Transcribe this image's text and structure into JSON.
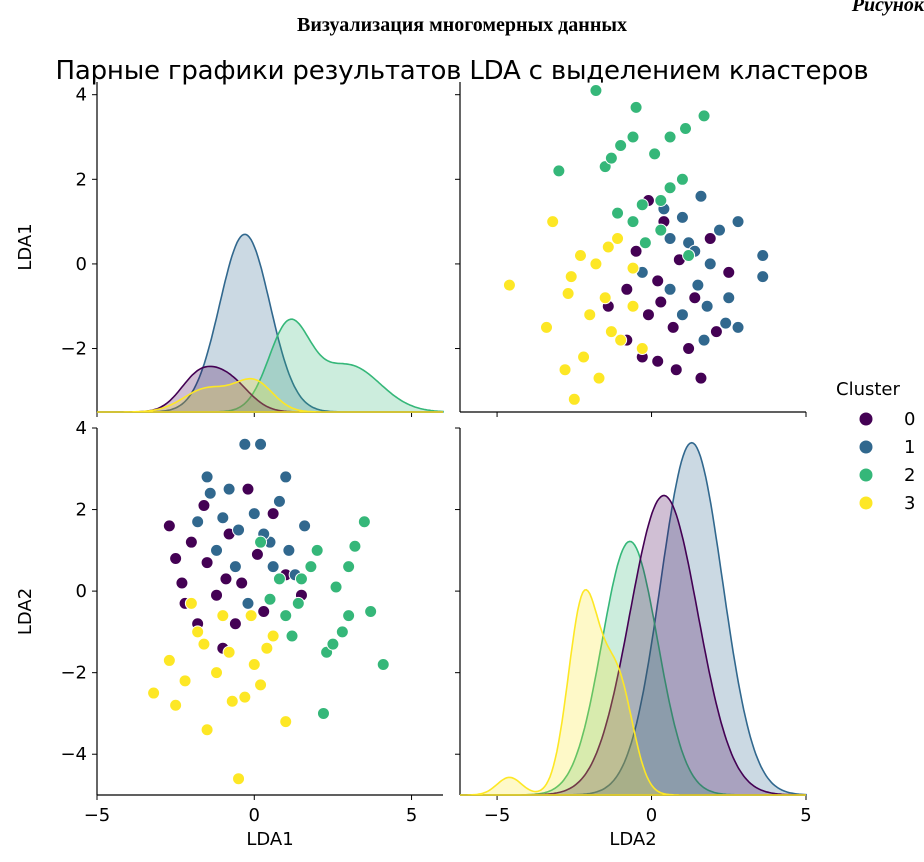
{
  "document": {
    "caption_fragment": "Рисунок",
    "heading": "Визуализация многомерных данных"
  },
  "chart_data": {
    "type": "scatter",
    "title": "Парные графики результатов LDA с выделением кластеров",
    "variables": [
      "LDA1",
      "LDA2"
    ],
    "legend": {
      "title": "Cluster",
      "placement": "right",
      "labels": [
        "0",
        "1",
        "2",
        "3"
      ]
    },
    "colors": {
      "0": "#440154",
      "1": "#31688e",
      "2": "#35b779",
      "3": "#fde725"
    },
    "axes": {
      "LDA1": {
        "range": [
          -5,
          6
        ],
        "ticks": [
          -5,
          0,
          5
        ],
        "diag_range": [
          -3.5,
          4.3
        ],
        "diag_ticks": [
          -2,
          0,
          2,
          4
        ]
      },
      "LDA2": {
        "range": [
          -6.2,
          5.0
        ],
        "ticks": [
          -5,
          0,
          5
        ],
        "offdiag_range": [
          -5,
          4
        ],
        "offdiag_ticks": [
          -4,
          -2,
          0,
          2,
          4
        ]
      }
    },
    "grid": false,
    "points": [
      {
        "c": 0,
        "x": -2.7,
        "y": 1.6
      },
      {
        "c": 0,
        "x": -2.3,
        "y": 0.2
      },
      {
        "c": 0,
        "x": -2.0,
        "y": 1.2
      },
      {
        "c": 0,
        "x": -1.8,
        "y": -0.8
      },
      {
        "c": 0,
        "x": -1.5,
        "y": 0.7
      },
      {
        "c": 0,
        "x": -1.2,
        "y": -0.1
      },
      {
        "c": 0,
        "x": -0.8,
        "y": 1.4
      },
      {
        "c": 0,
        "x": -0.4,
        "y": 0.2
      },
      {
        "c": 0,
        "x": -0.2,
        "y": 2.5
      },
      {
        "c": 0,
        "x": 0.3,
        "y": -0.5
      },
      {
        "c": 0,
        "x": 0.6,
        "y": 1.9
      },
      {
        "c": 0,
        "x": 1.0,
        "y": 0.4
      },
      {
        "c": 0,
        "x": 1.5,
        "y": -0.1
      },
      {
        "c": 0,
        "x": -1.0,
        "y": -1.4
      },
      {
        "c": 0,
        "x": -2.5,
        "y": 0.8
      },
      {
        "c": 0,
        "x": -1.6,
        "y": 2.1
      },
      {
        "c": 0,
        "x": -0.6,
        "y": -0.8
      },
      {
        "c": 0,
        "x": 0.1,
        "y": 0.9
      },
      {
        "c": 0,
        "x": -2.2,
        "y": -0.3
      },
      {
        "c": 0,
        "x": -0.9,
        "y": 0.3
      },
      {
        "c": 1,
        "x": -1.5,
        "y": 2.8
      },
      {
        "c": 1,
        "x": -1.0,
        "y": 1.8
      },
      {
        "c": 1,
        "x": -0.3,
        "y": 3.6
      },
      {
        "c": 1,
        "x": 0.2,
        "y": 3.6
      },
      {
        "c": 1,
        "x": 0.5,
        "y": 1.2
      },
      {
        "c": 1,
        "x": 1.0,
        "y": 2.8
      },
      {
        "c": 1,
        "x": 1.3,
        "y": 0.4
      },
      {
        "c": 1,
        "x": -0.6,
        "y": 0.6
      },
      {
        "c": 1,
        "x": 0.0,
        "y": 1.9
      },
      {
        "c": 1,
        "x": -1.8,
        "y": 1.7
      },
      {
        "c": 1,
        "x": -0.8,
        "y": 2.5
      },
      {
        "c": 1,
        "x": 0.8,
        "y": 2.2
      },
      {
        "c": 1,
        "x": 1.6,
        "y": 1.6
      },
      {
        "c": 1,
        "x": -0.2,
        "y": -0.3
      },
      {
        "c": 1,
        "x": -1.2,
        "y": 1.0
      },
      {
        "c": 1,
        "x": 0.3,
        "y": 1.4
      },
      {
        "c": 1,
        "x": -1.4,
        "y": 2.4
      },
      {
        "c": 1,
        "x": 1.1,
        "y": 1.0
      },
      {
        "c": 1,
        "x": -0.5,
        "y": 1.5
      },
      {
        "c": 1,
        "x": 0.6,
        "y": 0.6
      },
      {
        "c": 2,
        "x": 0.5,
        "y": -0.2
      },
      {
        "c": 2,
        "x": 1.0,
        "y": -0.6
      },
      {
        "c": 2,
        "x": 1.5,
        "y": 0.3
      },
      {
        "c": 2,
        "x": 2.0,
        "y": 1.0
      },
      {
        "c": 2,
        "x": 2.3,
        "y": -1.5
      },
      {
        "c": 2,
        "x": 2.6,
        "y": 0.1
      },
      {
        "c": 2,
        "x": 3.0,
        "y": -0.6
      },
      {
        "c": 2,
        "x": 3.2,
        "y": 1.1
      },
      {
        "c": 2,
        "x": 3.7,
        "y": -0.5
      },
      {
        "c": 2,
        "x": 4.1,
        "y": -1.8
      },
      {
        "c": 2,
        "x": 1.2,
        "y": -1.1
      },
      {
        "c": 2,
        "x": 2.2,
        "y": -3.0
      },
      {
        "c": 2,
        "x": 0.2,
        "y": 1.2
      },
      {
        "c": 2,
        "x": 1.8,
        "y": 0.6
      },
      {
        "c": 2,
        "x": 3.5,
        "y": 1.7
      },
      {
        "c": 2,
        "x": 2.8,
        "y": -1.0
      },
      {
        "c": 2,
        "x": 1.4,
        "y": -0.3
      },
      {
        "c": 2,
        "x": 2.5,
        "y": -1.3
      },
      {
        "c": 2,
        "x": 3.0,
        "y": 0.6
      },
      {
        "c": 2,
        "x": 0.8,
        "y": 0.3
      },
      {
        "c": 3,
        "x": -3.2,
        "y": -2.5
      },
      {
        "c": 3,
        "x": -2.7,
        "y": -1.7
      },
      {
        "c": 3,
        "x": -2.2,
        "y": -2.2
      },
      {
        "c": 3,
        "x": -1.8,
        "y": -1.0
      },
      {
        "c": 3,
        "x": -1.5,
        "y": -3.4
      },
      {
        "c": 3,
        "x": -1.2,
        "y": -2.0
      },
      {
        "c": 3,
        "x": -0.8,
        "y": -1.5
      },
      {
        "c": 3,
        "x": -0.5,
        "y": -4.6
      },
      {
        "c": 3,
        "x": -0.1,
        "y": -0.6
      },
      {
        "c": 3,
        "x": 0.2,
        "y": -2.3
      },
      {
        "c": 3,
        "x": 0.6,
        "y": -1.1
      },
      {
        "c": 3,
        "x": 1.0,
        "y": -3.2
      },
      {
        "c": 3,
        "x": -2.0,
        "y": -0.3
      },
      {
        "c": 3,
        "x": -1.0,
        "y": -0.6
      },
      {
        "c": 3,
        "x": 0.0,
        "y": -1.8
      },
      {
        "c": 3,
        "x": -2.5,
        "y": -2.8
      },
      {
        "c": 3,
        "x": -0.3,
        "y": -2.6
      },
      {
        "c": 3,
        "x": 0.4,
        "y": -1.4
      },
      {
        "c": 3,
        "x": -1.6,
        "y": -1.3
      },
      {
        "c": 3,
        "x": -0.7,
        "y": -2.7
      }
    ],
    "kde": {
      "LDA1": [
        {
          "c": 0,
          "peaks": [
            {
              "m": -1.8,
              "s": 0.6,
              "h": 0.76
            },
            {
              "m": -0.8,
              "s": 0.65,
              "h": 0.72
            }
          ],
          "base": 0.2
        },
        {
          "c": 1,
          "peaks": [
            {
              "m": -0.3,
              "s": 0.8,
              "h": 4.2
            }
          ],
          "base": 0.2
        },
        {
          "c": 2,
          "peaks": [
            {
              "m": 1.1,
              "s": 0.65,
              "h": 2.0
            },
            {
              "m": 3.0,
              "s": 1.0,
              "h": 1.1
            }
          ],
          "base": 0.2
        },
        {
          "c": 3,
          "peaks": [
            {
              "m": -1.5,
              "s": 0.75,
              "h": 0.55
            },
            {
              "m": 0.0,
              "s": 0.6,
              "h": 0.7
            }
          ],
          "base": 0.2
        }
      ],
      "LDA2": [
        {
          "c": 0,
          "peaks": [
            {
              "m": 0.4,
              "s": 1.1,
              "h": 0.85
            }
          ]
        },
        {
          "c": 1,
          "peaks": [
            {
              "m": 1.3,
              "s": 1.0,
              "h": 1.0
            }
          ]
        },
        {
          "c": 2,
          "peaks": [
            {
              "m": -0.7,
              "s": 0.9,
              "h": 0.72
            }
          ]
        },
        {
          "c": 3,
          "peaks": [
            {
              "m": -2.2,
              "s": 0.5,
              "h": 0.55
            },
            {
              "m": -1.1,
              "s": 0.5,
              "h": 0.32
            },
            {
              "m": -4.6,
              "s": 0.4,
              "h": 0.05
            }
          ]
        }
      ],
      "LDA2_max": 1.0
    }
  }
}
